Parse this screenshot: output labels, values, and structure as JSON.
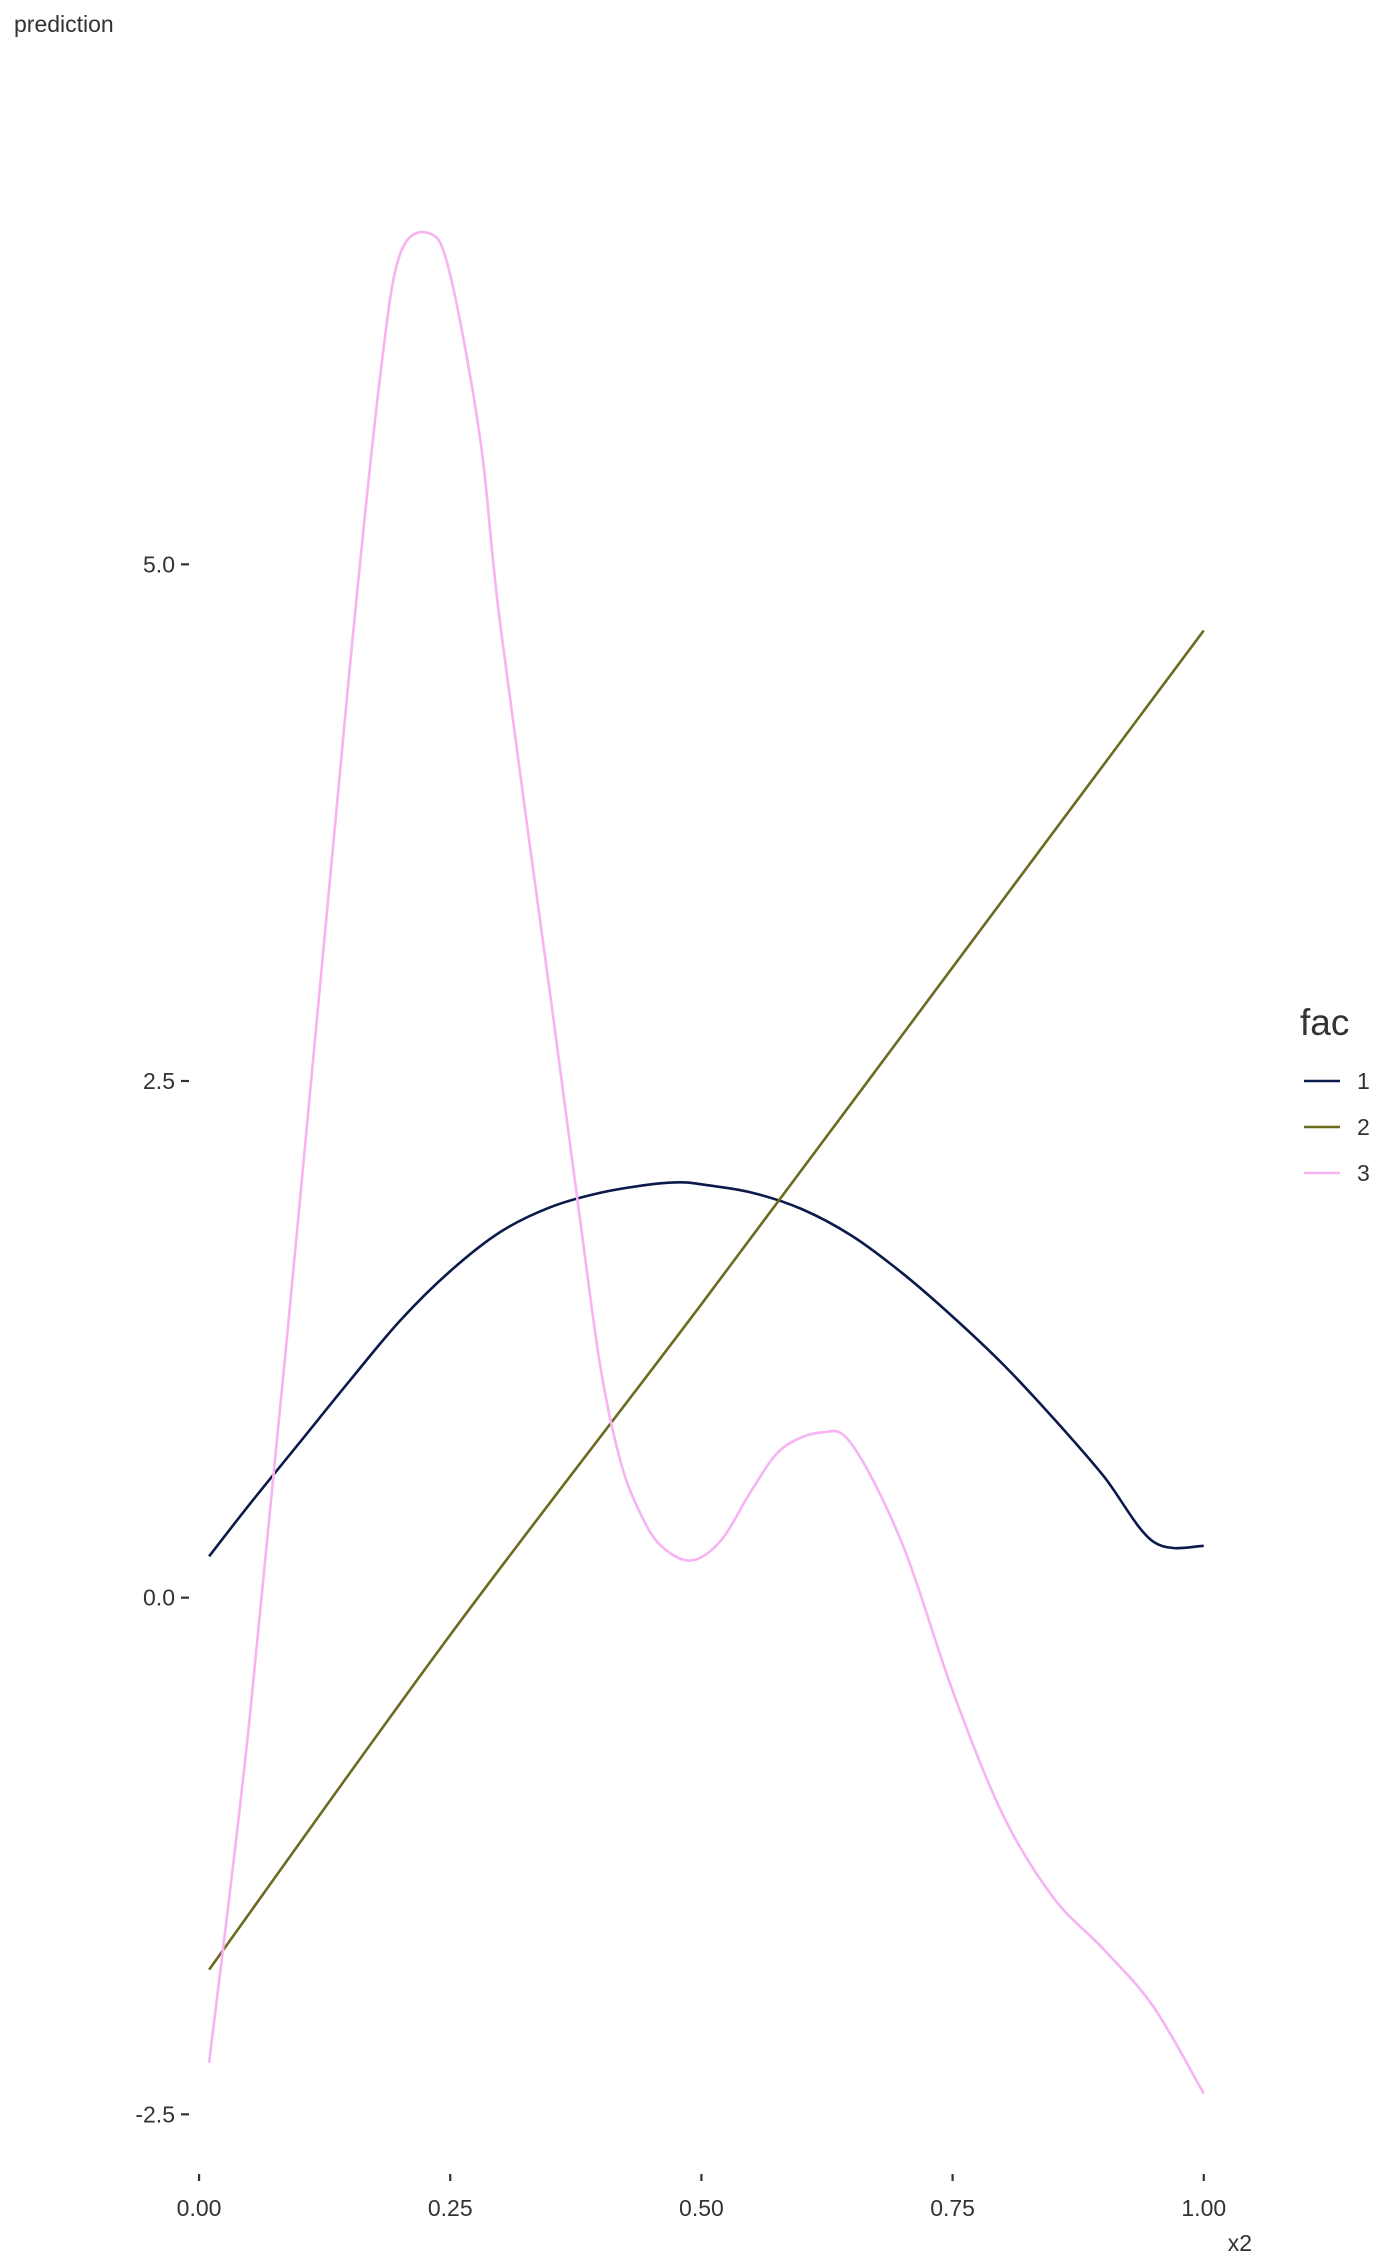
{
  "chart_data": {
    "type": "line",
    "title": "",
    "xlabel": "x2",
    "ylabel": "prediction",
    "xlim": [
      -0.013,
      1.048
    ],
    "ylim": [
      -2.75,
      7.45
    ],
    "x_ticks": [
      {
        "value": 0.0,
        "label": "0.00"
      },
      {
        "value": 0.25,
        "label": "0.25"
      },
      {
        "value": 0.5,
        "label": "0.50"
      },
      {
        "value": 0.75,
        "label": "0.75"
      },
      {
        "value": 1.0,
        "label": "1.00"
      }
    ],
    "y_ticks": [
      {
        "value": -2.5,
        "label": "-2.5"
      },
      {
        "value": 0.0,
        "label": "0.0"
      },
      {
        "value": 2.5,
        "label": "2.5"
      },
      {
        "value": 5.0,
        "label": "5.0"
      }
    ],
    "grid": false,
    "legend": {
      "title": "fac",
      "placement": "right"
    },
    "series": [
      {
        "name": "1",
        "color": "#0b1a4a",
        "x": [
          0.01,
          0.05,
          0.1,
          0.15,
          0.2,
          0.25,
          0.3,
          0.35,
          0.4,
          0.45,
          0.48,
          0.5,
          0.55,
          0.6,
          0.65,
          0.7,
          0.75,
          0.8,
          0.85,
          0.9,
          0.95,
          1.0
        ],
        "y": [
          0.2,
          0.45,
          0.75,
          1.05,
          1.34,
          1.58,
          1.77,
          1.89,
          1.96,
          2.0,
          2.01,
          2.0,
          1.96,
          1.88,
          1.75,
          1.57,
          1.36,
          1.13,
          0.87,
          0.59,
          0.27,
          0.25
        ]
      },
      {
        "name": "2",
        "color": "#6b6b1f",
        "x": [
          0.01,
          0.25,
          0.5,
          0.75,
          1.0
        ],
        "y": [
          -1.8,
          -0.18,
          1.42,
          3.05,
          4.68
        ]
      },
      {
        "name": "3",
        "color": "#f7b3f2",
        "x": [
          0.01,
          0.05,
          0.1,
          0.15,
          0.18,
          0.2,
          0.23,
          0.25,
          0.28,
          0.3,
          0.35,
          0.38,
          0.4,
          0.42,
          0.44,
          0.46,
          0.49,
          0.52,
          0.55,
          0.58,
          0.62,
          0.65,
          0.7,
          0.75,
          0.8,
          0.85,
          0.9,
          0.95,
          1.0
        ],
        "y": [
          -2.25,
          -0.6,
          1.9,
          4.5,
          5.9,
          6.5,
          6.6,
          6.4,
          5.6,
          4.7,
          2.9,
          1.8,
          1.1,
          0.65,
          0.4,
          0.25,
          0.18,
          0.28,
          0.52,
          0.72,
          0.8,
          0.74,
          0.26,
          -0.45,
          -1.05,
          -1.45,
          -1.7,
          -1.98,
          -2.4
        ]
      }
    ]
  }
}
